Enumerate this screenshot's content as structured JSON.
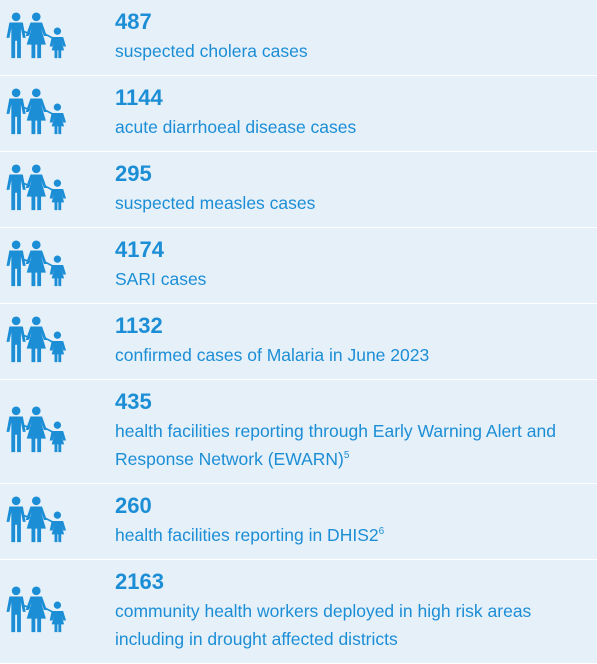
{
  "items": [
    {
      "number": 487,
      "text": "suspected cholera cases"
    },
    {
      "number": 1144,
      "text": "acute diarrhoeal disease cases"
    },
    {
      "number": 295,
      "text": "suspected measles cases"
    },
    {
      "number": 4174,
      "text": "SARI cases"
    },
    {
      "number": 1132,
      "text": "confirmed cases of Malaria in June 2023"
    },
    {
      "number": 435,
      "text": "health facilities reporting through Early Warning Alert and Response Network (EWARN)",
      "footnote": "5"
    },
    {
      "number": 260,
      "text": "health facilities reporting in DHIS2",
      "footnote": "6"
    },
    {
      "number": 2163,
      "text": "community health workers deployed in high risk areas including in drought affected districts"
    }
  ]
}
